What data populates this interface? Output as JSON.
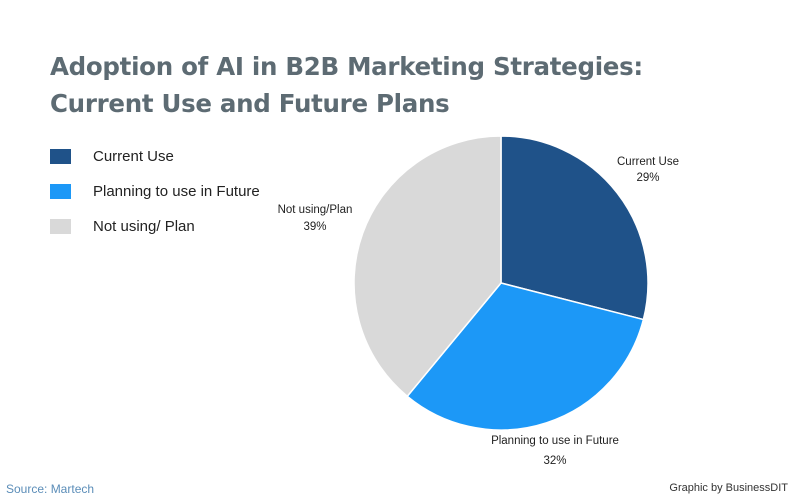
{
  "chart_data": {
    "type": "pie",
    "title_lines": [
      "Adoption of AI in B2B Marketing Strategies:",
      "Current Use and Future Plans"
    ],
    "legend": [
      "Current Use",
      "Planning to use in Future",
      "Not using/ Plan"
    ],
    "slices": [
      {
        "name": "Current Use",
        "label": "Current Use",
        "value": 29,
        "value_label": "29%",
        "color": "#1f5289"
      },
      {
        "name": "Planning to use in Future",
        "label": "Planning to use in Future",
        "value": 32,
        "value_label": "32%",
        "color": "#1c98f7"
      },
      {
        "name": "Not using/ Plan",
        "label": "Not using/Plan",
        "value": 39,
        "value_label": "39%",
        "color": "#d9d9d9"
      }
    ],
    "legend_position": "top-left"
  },
  "footer": {
    "source": "Source: Martech",
    "credit": "Graphic by BusinessDIT"
  }
}
